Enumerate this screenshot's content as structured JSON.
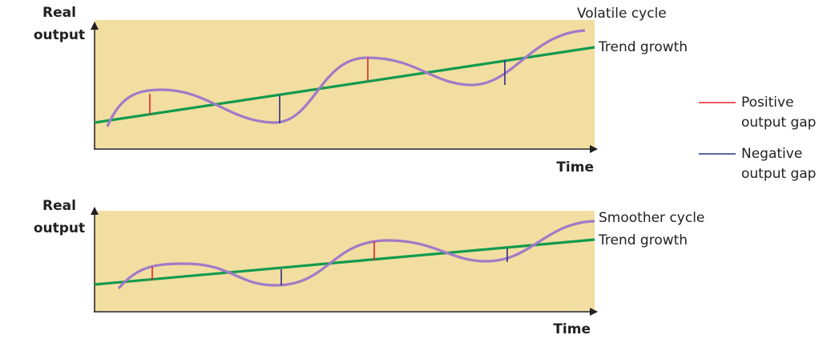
{
  "colors": {
    "panel_fill": "#f2dea0",
    "axis": "#231f20",
    "trend": "#109a4f",
    "cycle": "#a07ac8",
    "positive_gap": "#e8212b",
    "negative_gap": "#2b2f84"
  },
  "legend": {
    "positive": [
      "Positive",
      "output gap"
    ],
    "negative": [
      "Negative",
      "output gap"
    ]
  },
  "top_chart": {
    "ylabel": [
      "Real",
      "output"
    ],
    "xlabel": "Time",
    "cycle_label": "Volatile cycle",
    "trend_label": "Trend growth"
  },
  "bottom_chart": {
    "ylabel": [
      "Real",
      "output"
    ],
    "xlabel": "Time",
    "cycle_label": "Smoother cycle",
    "trend_label": "Trend growth"
  }
}
